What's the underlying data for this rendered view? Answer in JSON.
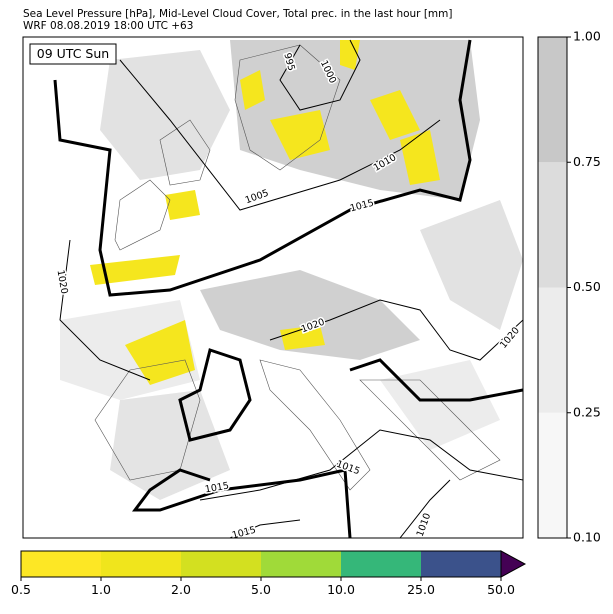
{
  "header": {
    "title": "Sea Level Pressure [hPa], Mid-Level Cloud Cover, Total prec. in the last hour [mm]",
    "subtitle": "WRF 08.08.2019 18:00 UTC +63"
  },
  "map": {
    "time_label": "09 UTC Sun",
    "isobar_labels": [
      "995",
      "1000",
      "1005",
      "1010",
      "1015",
      "1020",
      "1020",
      "1020",
      "1015",
      "1015",
      "1015",
      "1010"
    ]
  },
  "cloud_colorbar": {
    "ticks": [
      "0.10",
      "0.25",
      "0.50",
      "0.75",
      "1.00"
    ],
    "colors": [
      "#f7f7f7",
      "#ececec",
      "#dcdcdc",
      "#c8c8c8"
    ]
  },
  "precip_colorbar": {
    "ticks": [
      "0.5",
      "1.0",
      "2.0",
      "5.0",
      "10.0",
      "25.0",
      "50.0"
    ],
    "colors": [
      "#fde725",
      "#f0e51c",
      "#d3e020",
      "#a0da39",
      "#35b779",
      "#3b528b"
    ],
    "extend_color": "#440154"
  }
}
